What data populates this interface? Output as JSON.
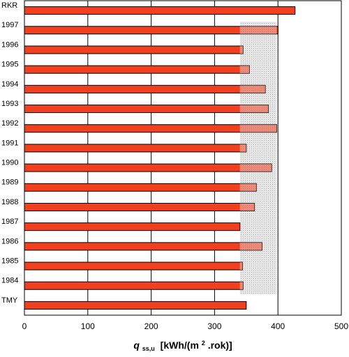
{
  "chart_data": {
    "type": "bar",
    "orientation": "horizontal",
    "categories": [
      "RKR",
      "1997",
      "1996",
      "1995",
      "1994",
      "1993",
      "1992",
      "1991",
      "1990",
      "1989",
      "1988",
      "1987",
      "1986",
      "1985",
      "1984",
      "TMY"
    ],
    "values": [
      427,
      400,
      345,
      355,
      380,
      385,
      398,
      350,
      390,
      366,
      363,
      340,
      375,
      344,
      345,
      350
    ],
    "highlight_band": {
      "x_start": 340,
      "x_end": 398,
      "from_category": "1997",
      "to_category": "1984"
    },
    "xlim": [
      0,
      500
    ],
    "xticks": [
      0,
      100,
      200,
      300,
      400,
      500
    ],
    "xlabel": {
      "symbol": "q",
      "subscript": "ss,u",
      "unit_prefix": "[kWh/(m",
      "unit_sup": "2",
      "unit_suffix": ".rok)]"
    },
    "grid": "vertical",
    "colors": {
      "bar": "#f04020",
      "bar_edge": "#000000",
      "band": "#d8d8d8"
    }
  }
}
